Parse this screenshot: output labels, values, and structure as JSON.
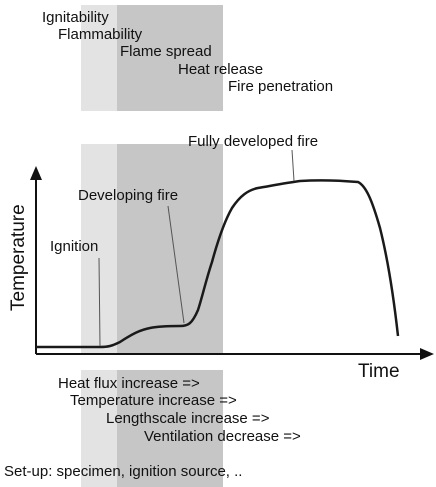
{
  "colors": {
    "light_band": "#e3e3e3",
    "dark_band": "#c6c6c6",
    "curve": "#1a1a1a",
    "leader": "#555555",
    "axis": "#111111",
    "background": "#ffffff"
  },
  "properties": {
    "ignitability": "Ignitability",
    "flammability": "Flammability",
    "flame_spread": "Flame spread",
    "heat_release": "Heat release",
    "fire_penetration": "Fire penetration"
  },
  "stages": {
    "fully_developed": "Fully developed fire",
    "developing": "Developing fire",
    "ignition": "Ignition"
  },
  "axes": {
    "y_label": "Temperature",
    "x_label": "Time"
  },
  "factors": {
    "heat_flux": "Heat flux increase =>",
    "temperature": "Temperature increase =>",
    "lengthscale": "Lengthscale increase =>",
    "ventilation": "Ventilation decrease =>"
  },
  "setup": "Set-up: specimen, ignition source, .."
}
